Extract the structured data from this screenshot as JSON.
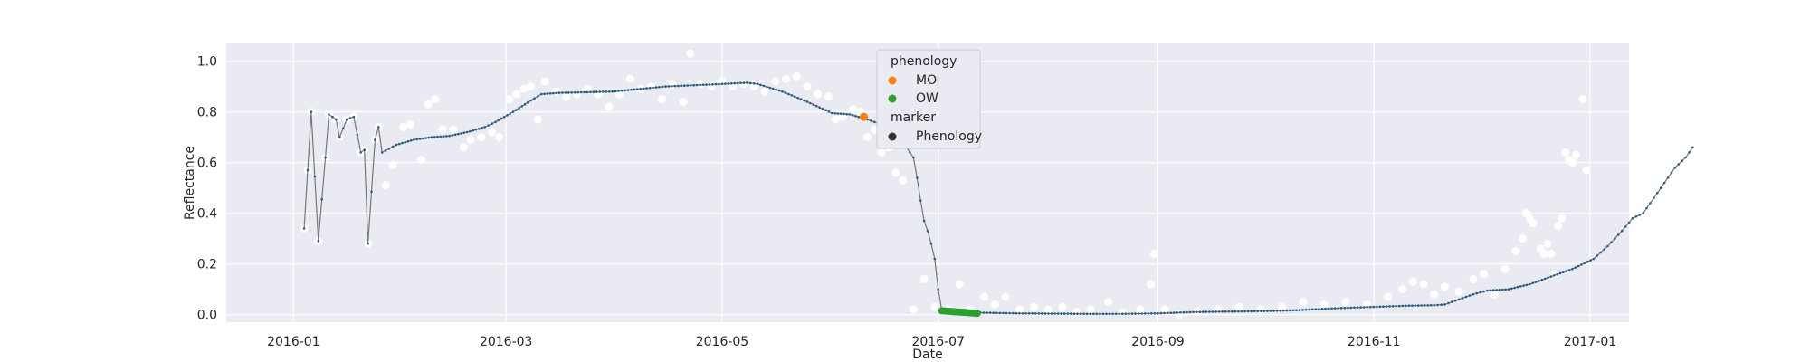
{
  "chart_data": {
    "type": "scatter",
    "xlabel": "Date",
    "ylabel": "Reflectance",
    "x_ticks": [
      {
        "date": "2016-01-01",
        "label": "2016-01"
      },
      {
        "date": "2016-03-01",
        "label": "2016-03"
      },
      {
        "date": "2016-05-01",
        "label": "2016-05"
      },
      {
        "date": "2016-07-01",
        "label": "2016-07"
      },
      {
        "date": "2016-09-01",
        "label": "2016-09"
      },
      {
        "date": "2016-11-01",
        "label": "2016-11"
      },
      {
        "date": "2017-01-01",
        "label": "2017-01"
      }
    ],
    "xlim": [
      "2015-12-13",
      "2017-01-12"
    ],
    "ylim": [
      -0.03,
      1.07
    ],
    "y_ticks": [
      0.0,
      0.2,
      0.4,
      0.6,
      0.8,
      1.0
    ],
    "y_tick_labels": [
      "0.0",
      "0.2",
      "0.4",
      "0.6",
      "0.8",
      "1.0"
    ],
    "grid": true,
    "legend": {
      "placement": "top-center",
      "sections": [
        {
          "title": "phenology",
          "entries": [
            {
              "label": "MO",
              "color": "#ff7f0e"
            },
            {
              "label": "OW",
              "color": "#2ca02c"
            }
          ]
        },
        {
          "title": "marker",
          "entries": [
            {
              "label": "Phenology",
              "color": "#333333"
            }
          ]
        }
      ]
    },
    "colors": {
      "background": "#eaeaf2",
      "grid": "#ffffff",
      "raw": "#ffffff",
      "line": "#777777",
      "markers": "#2a5d84",
      "MO": "#ff7f0e",
      "OW": "#2ca02c"
    },
    "raw_series": [
      [
        "2016-01-04",
        0.34
      ],
      [
        "2016-01-05",
        0.57
      ],
      [
        "2016-01-06",
        0.8
      ],
      [
        "2016-01-08",
        0.29
      ],
      [
        "2016-01-10",
        0.62
      ],
      [
        "2016-01-11",
        0.79
      ],
      [
        "2016-01-13",
        0.77
      ],
      [
        "2016-01-14",
        0.7
      ],
      [
        "2016-01-16",
        0.77
      ],
      [
        "2016-01-18",
        0.78
      ],
      [
        "2016-01-20",
        0.64
      ],
      [
        "2016-01-21",
        0.65
      ],
      [
        "2016-01-22",
        0.28
      ],
      [
        "2016-01-24",
        0.69
      ],
      [
        "2016-01-25",
        0.74
      ],
      [
        "2016-01-27",
        0.51
      ],
      [
        "2016-01-29",
        0.59
      ],
      [
        "2016-02-01",
        0.74
      ],
      [
        "2016-02-03",
        0.75
      ],
      [
        "2016-02-06",
        0.61
      ],
      [
        "2016-02-08",
        0.83
      ],
      [
        "2016-02-10",
        0.85
      ],
      [
        "2016-02-12",
        0.73
      ],
      [
        "2016-02-15",
        0.73
      ],
      [
        "2016-02-18",
        0.66
      ],
      [
        "2016-02-20",
        0.69
      ],
      [
        "2016-02-23",
        0.7
      ],
      [
        "2016-02-26",
        0.72
      ],
      [
        "2016-02-28",
        0.7
      ],
      [
        "2016-03-02",
        0.85
      ],
      [
        "2016-03-04",
        0.87
      ],
      [
        "2016-03-06",
        0.89
      ],
      [
        "2016-03-08",
        0.9
      ],
      [
        "2016-03-10",
        0.77
      ],
      [
        "2016-03-12",
        0.92
      ],
      [
        "2016-03-15",
        0.88
      ],
      [
        "2016-03-18",
        0.86
      ],
      [
        "2016-03-21",
        0.87
      ],
      [
        "2016-03-24",
        0.89
      ],
      [
        "2016-03-27",
        0.87
      ],
      [
        "2016-03-30",
        0.82
      ],
      [
        "2016-04-02",
        0.87
      ],
      [
        "2016-04-05",
        0.93
      ],
      [
        "2016-04-08",
        0.89
      ],
      [
        "2016-04-11",
        0.9
      ],
      [
        "2016-04-14",
        0.85
      ],
      [
        "2016-04-17",
        0.91
      ],
      [
        "2016-04-20",
        0.84
      ],
      [
        "2016-04-22",
        1.03
      ],
      [
        "2016-04-25",
        0.91
      ],
      [
        "2016-04-28",
        0.9
      ],
      [
        "2016-05-01",
        0.92
      ],
      [
        "2016-05-04",
        0.9
      ],
      [
        "2016-05-07",
        0.91
      ],
      [
        "2016-05-10",
        0.9
      ],
      [
        "2016-05-13",
        0.88
      ],
      [
        "2016-05-16",
        0.92
      ],
      [
        "2016-05-19",
        0.93
      ],
      [
        "2016-05-22",
        0.94
      ],
      [
        "2016-05-25",
        0.9
      ],
      [
        "2016-05-28",
        0.87
      ],
      [
        "2016-05-31",
        0.86
      ],
      [
        "2016-06-02",
        0.77
      ],
      [
        "2016-06-04",
        0.78
      ],
      [
        "2016-06-07",
        0.81
      ],
      [
        "2016-06-09",
        0.8
      ],
      [
        "2016-06-11",
        0.7
      ],
      [
        "2016-06-13",
        0.73
      ],
      [
        "2016-06-15",
        0.64
      ],
      [
        "2016-06-17",
        0.66
      ],
      [
        "2016-06-19",
        0.56
      ],
      [
        "2016-06-21",
        0.53
      ],
      [
        "2016-06-24",
        0.02
      ],
      [
        "2016-06-27",
        0.14
      ],
      [
        "2016-06-30",
        0.03
      ],
      [
        "2016-07-04",
        0.02
      ],
      [
        "2016-07-07",
        0.12
      ],
      [
        "2016-07-10",
        0.02
      ],
      [
        "2016-07-14",
        0.07
      ],
      [
        "2016-07-17",
        0.04
      ],
      [
        "2016-07-20",
        0.07
      ],
      [
        "2016-07-24",
        0.02
      ],
      [
        "2016-07-28",
        0.03
      ],
      [
        "2016-08-01",
        0.02
      ],
      [
        "2016-08-05",
        0.03
      ],
      [
        "2016-08-09",
        0.01
      ],
      [
        "2016-08-13",
        0.02
      ],
      [
        "2016-08-18",
        0.05
      ],
      [
        "2016-08-22",
        0.01
      ],
      [
        "2016-08-27",
        0.02
      ],
      [
        "2016-08-30",
        0.12
      ],
      [
        "2016-08-31",
        0.24
      ],
      [
        "2016-09-03",
        0.02
      ],
      [
        "2016-09-07",
        0.0
      ],
      [
        "2016-09-12",
        0.01
      ],
      [
        "2016-09-18",
        0.02
      ],
      [
        "2016-09-24",
        0.03
      ],
      [
        "2016-09-30",
        0.02
      ],
      [
        "2016-10-06",
        0.03
      ],
      [
        "2016-10-12",
        0.05
      ],
      [
        "2016-10-18",
        0.04
      ],
      [
        "2016-10-24",
        0.05
      ],
      [
        "2016-10-30",
        0.04
      ],
      [
        "2016-11-05",
        0.07
      ],
      [
        "2016-11-09",
        0.1
      ],
      [
        "2016-11-12",
        0.13
      ],
      [
        "2016-11-15",
        0.12
      ],
      [
        "2016-11-18",
        0.08
      ],
      [
        "2016-11-21",
        0.11
      ],
      [
        "2016-11-25",
        0.09
      ],
      [
        "2016-11-29",
        0.14
      ],
      [
        "2016-12-02",
        0.16
      ],
      [
        "2016-12-05",
        0.08
      ],
      [
        "2016-12-08",
        0.18
      ],
      [
        "2016-12-11",
        0.25
      ],
      [
        "2016-12-13",
        0.3
      ],
      [
        "2016-12-14",
        0.4
      ],
      [
        "2016-12-15",
        0.38
      ],
      [
        "2016-12-16",
        0.36
      ],
      [
        "2016-12-18",
        0.26
      ],
      [
        "2016-12-19",
        0.24
      ],
      [
        "2016-12-20",
        0.28
      ],
      [
        "2016-12-21",
        0.24
      ],
      [
        "2016-12-22",
        0.16
      ],
      [
        "2016-12-23",
        0.35
      ],
      [
        "2016-12-24",
        0.38
      ],
      [
        "2016-12-25",
        0.64
      ],
      [
        "2016-12-26",
        0.61
      ],
      [
        "2016-12-27",
        0.6
      ],
      [
        "2016-12-28",
        0.63
      ],
      [
        "2016-12-30",
        0.85
      ],
      [
        "2016-12-31",
        0.57
      ]
    ],
    "smooth_series": [
      [
        "2016-01-04",
        0.34
      ],
      [
        "2016-01-05",
        0.57
      ],
      [
        "2016-01-06",
        0.8
      ],
      [
        "2016-01-08",
        0.29
      ],
      [
        "2016-01-10",
        0.62
      ],
      [
        "2016-01-11",
        0.79
      ],
      [
        "2016-01-13",
        0.77
      ],
      [
        "2016-01-14",
        0.7
      ],
      [
        "2016-01-16",
        0.77
      ],
      [
        "2016-01-18",
        0.78
      ],
      [
        "2016-01-20",
        0.64
      ],
      [
        "2016-01-21",
        0.65
      ],
      [
        "2016-01-22",
        0.28
      ],
      [
        "2016-01-24",
        0.69
      ],
      [
        "2016-01-25",
        0.74
      ],
      [
        "2016-01-26",
        0.64
      ],
      [
        "2016-01-30",
        0.67
      ],
      [
        "2016-02-04",
        0.69
      ],
      [
        "2016-02-09",
        0.7
      ],
      [
        "2016-02-14",
        0.705
      ],
      [
        "2016-02-19",
        0.72
      ],
      [
        "2016-02-24",
        0.74
      ],
      [
        "2016-02-27",
        0.76
      ],
      [
        "2016-03-03",
        0.8
      ],
      [
        "2016-03-08",
        0.845
      ],
      [
        "2016-03-11",
        0.87
      ],
      [
        "2016-03-16",
        0.875
      ],
      [
        "2016-03-31",
        0.88
      ],
      [
        "2016-04-15",
        0.9
      ],
      [
        "2016-05-01",
        0.91
      ],
      [
        "2016-05-08",
        0.915
      ],
      [
        "2016-05-11",
        0.91
      ],
      [
        "2016-05-18",
        0.88
      ],
      [
        "2016-05-25",
        0.84
      ],
      [
        "2016-06-01",
        0.795
      ],
      [
        "2016-06-06",
        0.79
      ],
      [
        "2016-06-11",
        0.77
      ],
      [
        "2016-06-15",
        0.75
      ],
      [
        "2016-06-18",
        0.72
      ],
      [
        "2016-06-21",
        0.68
      ],
      [
        "2016-06-24",
        0.62
      ],
      [
        "2016-06-25",
        0.54
      ],
      [
        "2016-06-26",
        0.45
      ],
      [
        "2016-06-27",
        0.37
      ],
      [
        "2016-06-28",
        0.33
      ],
      [
        "2016-06-29",
        0.28
      ],
      [
        "2016-06-30",
        0.22
      ],
      [
        "2016-07-01",
        0.1
      ],
      [
        "2016-07-02",
        0.016
      ],
      [
        "2016-07-12",
        0.008
      ],
      [
        "2016-07-23",
        0.005
      ],
      [
        "2016-08-02",
        0.004
      ],
      [
        "2016-08-12",
        0.003
      ],
      [
        "2016-08-22",
        0.003
      ],
      [
        "2016-09-01",
        0.005
      ],
      [
        "2016-09-11",
        0.01
      ],
      [
        "2016-09-21",
        0.012
      ],
      [
        "2016-10-01",
        0.014
      ],
      [
        "2016-10-11",
        0.018
      ],
      [
        "2016-10-21",
        0.025
      ],
      [
        "2016-10-31",
        0.03
      ],
      [
        "2016-11-10",
        0.035
      ],
      [
        "2016-11-18",
        0.037
      ],
      [
        "2016-11-21",
        0.04
      ],
      [
        "2016-11-25",
        0.06
      ],
      [
        "2016-11-29",
        0.08
      ],
      [
        "2016-12-03",
        0.095
      ],
      [
        "2016-12-09",
        0.1
      ],
      [
        "2016-12-15",
        0.12
      ],
      [
        "2016-12-21",
        0.15
      ],
      [
        "2016-12-27",
        0.18
      ],
      [
        "2017-01-02",
        0.22
      ],
      [
        "2017-01-06",
        0.27
      ],
      [
        "2017-01-10",
        0.33
      ],
      [
        "2017-01-13",
        0.38
      ],
      [
        "2017-01-16",
        0.4
      ],
      [
        "2017-01-19",
        0.46
      ],
      [
        "2017-01-22",
        0.52
      ],
      [
        "2017-01-25",
        0.58
      ],
      [
        "2017-01-28",
        0.62
      ],
      [
        "2017-01-30",
        0.66
      ]
    ],
    "phenology_points": {
      "MO": [
        [
          "2016-06-10",
          0.78
        ]
      ],
      "OW": [
        [
          "2016-07-02",
          0.015
        ],
        [
          "2016-07-12",
          0.005
        ]
      ]
    }
  }
}
